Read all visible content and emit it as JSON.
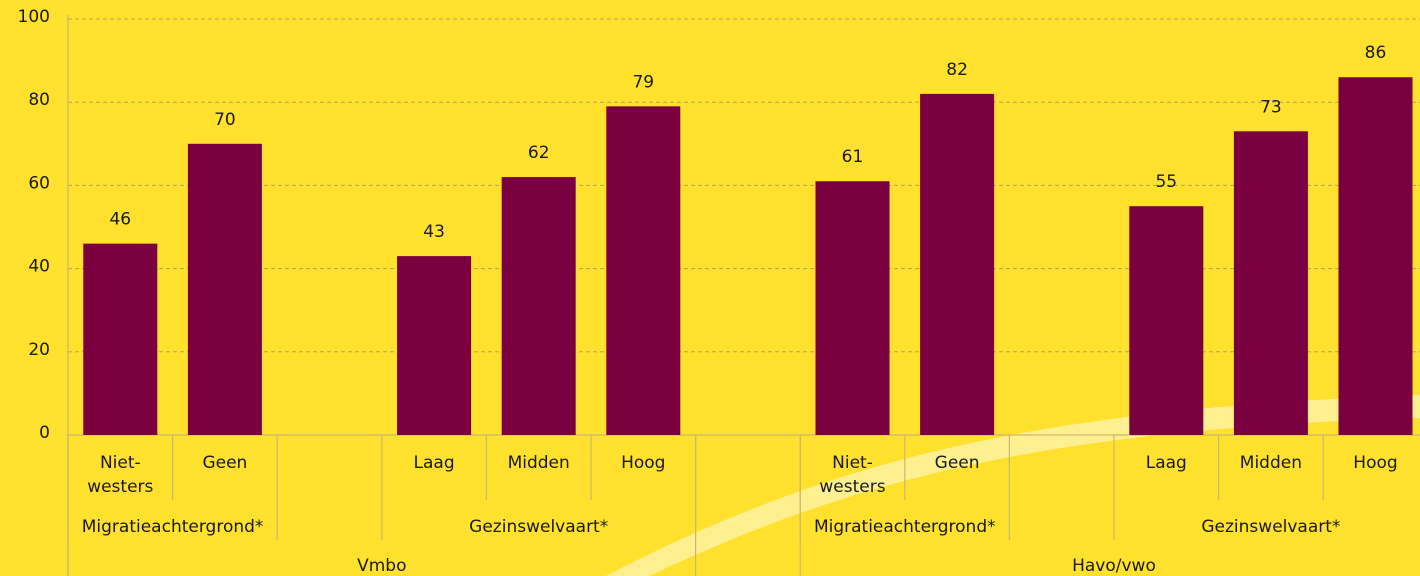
{
  "chart_data": {
    "type": "bar",
    "color": "#7a0040",
    "ylim": [
      0,
      100
    ],
    "yticks": [
      0,
      20,
      40,
      60,
      80,
      100
    ],
    "grid": true,
    "groups": [
      {
        "name": "Vmbo",
        "subgroups": [
          {
            "name": "Migratieachtergrond*",
            "categories": [
              "Niet-\nwesters",
              "Geen"
            ],
            "values": [
              46,
              70
            ]
          },
          {
            "name": "Gezinswelvaart*",
            "categories": [
              "Laag",
              "Midden",
              "Hoog"
            ],
            "values": [
              43,
              62,
              79
            ]
          }
        ]
      },
      {
        "name": "Havo/vwo",
        "subgroups": [
          {
            "name": "Migratieachtergrond*",
            "categories": [
              "Niet-\nwesters",
              "Geen"
            ],
            "values": [
              61,
              82
            ]
          },
          {
            "name": "Gezinswelvaart*",
            "categories": [
              "Laag",
              "Midden",
              "Hoog"
            ],
            "values": [
              55,
              73,
              86
            ]
          }
        ]
      }
    ]
  }
}
